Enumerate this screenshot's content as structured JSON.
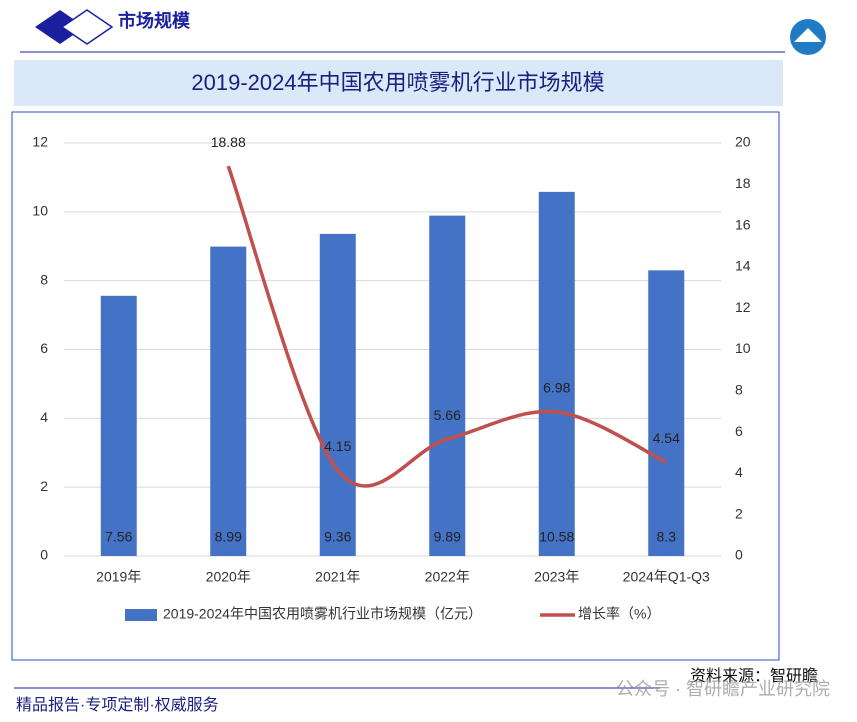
{
  "header": {
    "title": "市场规模"
  },
  "chart_data": {
    "type": "bar",
    "title": "2019-2024年中国农用喷雾机行业市场规模",
    "categories": [
      "2019年",
      "2020年",
      "2021年",
      "2022年",
      "2023年",
      "2024年Q1-Q3"
    ],
    "series": [
      {
        "name": "2019-2024年中国农用喷雾机行业市场规模（亿元）",
        "type": "bar",
        "color": "#4472c4",
        "values": [
          7.56,
          8.99,
          9.36,
          9.89,
          10.58,
          8.3
        ]
      },
      {
        "name": "增长率（%）",
        "type": "line",
        "axis": "y2",
        "color": "#c0504d",
        "values": [
          null,
          18.88,
          4.15,
          5.66,
          6.98,
          4.54
        ]
      }
    ],
    "ylim": [
      0,
      12
    ],
    "yticks": [
      0,
      2,
      4,
      6,
      8,
      10,
      12
    ],
    "y2lim": [
      0,
      20
    ],
    "y2ticks": [
      0,
      2,
      4,
      6,
      8,
      10,
      12,
      14,
      16,
      18,
      20
    ],
    "grid": true,
    "legend": "bottom"
  },
  "source": "资料来源：智研瞻",
  "footer": {
    "slogan": "精品报告·专项定制·权威服务",
    "watermark": "公众号 · 智研瞻产业研究院"
  }
}
